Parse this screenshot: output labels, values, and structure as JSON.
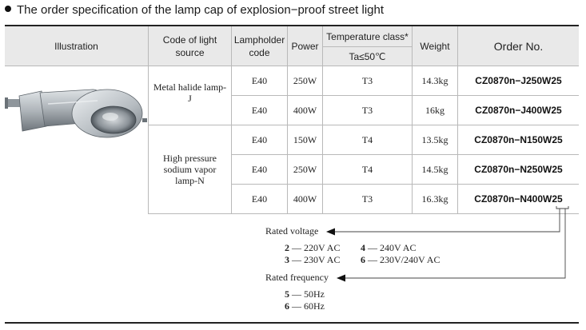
{
  "heading": "The order specification of the lamp cap of explosion−proof street light",
  "headers": {
    "illustration": "Illustration",
    "code_of_light_source": "Code of light source",
    "lampholder_code": "Lampholder code",
    "power": "Power",
    "temperature_class": "Temperature class*",
    "temperature_condition": "Ta≤50℃",
    "weight": "Weight",
    "order_no": "Order No."
  },
  "sources": [
    {
      "name": "Metal halide lamp-J"
    },
    {
      "name": "High pressure sodium vapor lamp-N"
    }
  ],
  "rows": [
    {
      "lampholder": "E40",
      "power": "250W",
      "temp": "T3",
      "weight": "14.3kg",
      "order": "CZ0870n−J250W25"
    },
    {
      "lampholder": "E40",
      "power": "400W",
      "temp": "T3",
      "weight": "16kg",
      "order": "CZ0870n−J400W25"
    },
    {
      "lampholder": "E40",
      "power": "150W",
      "temp": "T4",
      "weight": "13.5kg",
      "order": "CZ0870n−N150W25"
    },
    {
      "lampholder": "E40",
      "power": "250W",
      "temp": "T4",
      "weight": "14.5kg",
      "order": "CZ0870n−N250W25"
    },
    {
      "lampholder": "E40",
      "power": "400W",
      "temp": "T3",
      "weight": "16.3kg",
      "order": "CZ0870n−N400W25"
    }
  ],
  "legend": {
    "voltage_title": "Rated voltage",
    "voltage_options": [
      {
        "code": "2",
        "value": "220V  AC"
      },
      {
        "code": "4",
        "value": "240V  AC"
      },
      {
        "code": "3",
        "value": "230V  AC"
      },
      {
        "code": "6",
        "value": "230V/240V  AC"
      }
    ],
    "frequency_title": "Rated frequency",
    "frequency_options": [
      {
        "code": "5",
        "value": "50Hz"
      },
      {
        "code": "6",
        "value": "60Hz"
      }
    ]
  }
}
